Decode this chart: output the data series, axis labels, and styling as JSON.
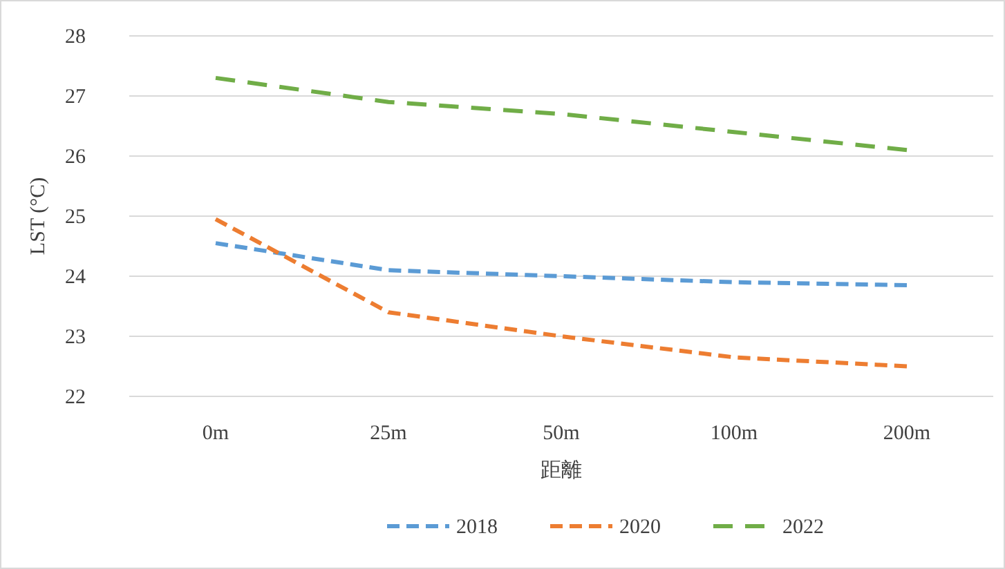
{
  "chart_data": {
    "type": "line",
    "xlabel": "距離",
    "ylabel": "LST (°C)",
    "categories": [
      "0m",
      "25m",
      "50m",
      "100m",
      "200m"
    ],
    "series": [
      {
        "name": "2018",
        "color": "#5b9bd5",
        "line_style": "dashed",
        "values": [
          24.55,
          24.1,
          24.0,
          23.9,
          23.85
        ]
      },
      {
        "name": "2020",
        "color": "#ed7d31",
        "line_style": "dashed",
        "values": [
          24.95,
          23.4,
          23.0,
          22.65,
          22.5
        ]
      },
      {
        "name": "2022",
        "color": "#70ad47",
        "line_style": "dashed",
        "values": [
          27.3,
          26.9,
          26.7,
          26.4,
          26.1
        ]
      }
    ],
    "ylim": [
      22,
      28
    ],
    "yticks": [
      22,
      23,
      24,
      25,
      26,
      27,
      28
    ],
    "grid": "y",
    "legend": "bottom",
    "marker": "none"
  }
}
